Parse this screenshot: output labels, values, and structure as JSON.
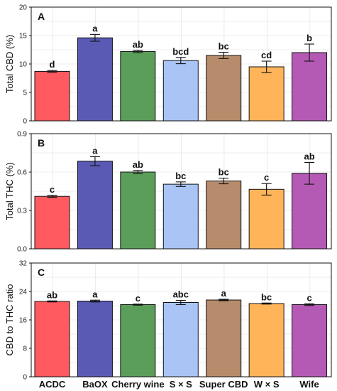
{
  "chart_data": [
    {
      "type": "bar",
      "panel_label": "A",
      "ylabel": "Total CBD (%)",
      "ylim": [
        0,
        20
      ],
      "yticks": [
        0,
        5,
        10,
        15,
        20
      ],
      "categories": [
        "ACDC",
        "BaOX",
        "Cherry wine",
        "S × S",
        "Super CBD",
        "W × S",
        "Wife"
      ],
      "values": [
        8.7,
        14.6,
        12.2,
        10.6,
        11.5,
        9.5,
        12.0
      ],
      "errors": [
        0.15,
        0.6,
        0.2,
        0.55,
        0.55,
        1.0,
        1.5
      ],
      "significance": [
        "d",
        "a",
        "ab",
        "bcd",
        "bc",
        "cd",
        "b"
      ],
      "grid": true
    },
    {
      "type": "bar",
      "panel_label": "B",
      "ylabel": "Total THC (%)",
      "ylim": [
        0,
        0.9
      ],
      "yticks": [
        "0.0",
        "0.3",
        "0.6",
        "0.9"
      ],
      "categories": [
        "ACDC",
        "BaOX",
        "Cherry wine",
        "S × S",
        "Super CBD",
        "W × S",
        "Wife"
      ],
      "values": [
        0.41,
        0.685,
        0.6,
        0.505,
        0.53,
        0.465,
        0.59
      ],
      "errors": [
        0.008,
        0.035,
        0.012,
        0.018,
        0.022,
        0.045,
        0.085
      ],
      "significance": [
        "c",
        "a",
        "ab",
        "bc",
        "bc",
        "c",
        "ab"
      ],
      "grid": true
    },
    {
      "type": "bar",
      "panel_label": "C",
      "ylabel": "CBD to THC ratio",
      "ylim": [
        0,
        32
      ],
      "yticks": [
        0,
        8,
        16,
        24,
        32
      ],
      "categories": [
        "ACDC",
        "BaOX",
        "Cherry wine",
        "S × S",
        "Super CBD",
        "W × S",
        "Wife"
      ],
      "values": [
        21.2,
        21.3,
        20.3,
        20.9,
        21.6,
        20.6,
        20.3
      ],
      "errors": [
        0.15,
        0.25,
        0.15,
        0.6,
        0.2,
        0.15,
        0.25
      ],
      "significance": [
        "ab",
        "a",
        "c",
        "abc",
        "a",
        "bc",
        "c"
      ],
      "grid": true
    }
  ],
  "colors": [
    "#ff5a5f",
    "#5a5ab4",
    "#5a9e5a",
    "#a9c4f5",
    "#b68c6c",
    "#ffb45a",
    "#b45ab4"
  ]
}
